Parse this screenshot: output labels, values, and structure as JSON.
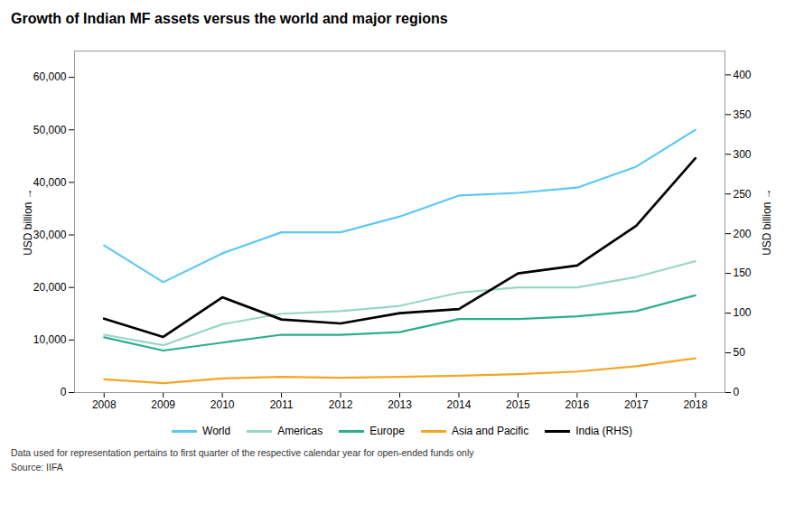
{
  "chart_data": {
    "type": "line",
    "title": "Growth of Indian MF assets versus the world and major regions",
    "x": [
      2008,
      2009,
      2010,
      2011,
      2012,
      2013,
      2014,
      2015,
      2016,
      2017,
      2018
    ],
    "xlim": [
      2007.5,
      2018.5
    ],
    "xticks": [
      2008,
      2009,
      2010,
      2011,
      2012,
      2013,
      2014,
      2015,
      2016,
      2017,
      2018
    ],
    "series": [
      {
        "name": "World",
        "color": "#5BC8F5",
        "values": [
          28000,
          21000,
          26500,
          30500,
          30500,
          33500,
          37500,
          38000,
          39000,
          43000,
          50000
        ]
      },
      {
        "name": "Americas",
        "color": "#99D6C8",
        "values": [
          11000,
          9000,
          13000,
          15000,
          15500,
          16500,
          19000,
          20000,
          20000,
          22000,
          25000
        ]
      },
      {
        "name": "Europe",
        "color": "#2BAE8E",
        "values": [
          10500,
          8000,
          9500,
          11000,
          11000,
          11500,
          14000,
          14000,
          14500,
          15500,
          18500
        ]
      },
      {
        "name": "Asia and Pacific",
        "color": "#F5A623",
        "values": [
          2500,
          1800,
          2700,
          3000,
          2800,
          3000,
          3200,
          3500,
          4000,
          5000,
          6500
        ]
      },
      {
        "name": "India (RHS)",
        "color": "#000000",
        "axis": "y2",
        "values": [
          93,
          70,
          120,
          92,
          87,
          100,
          105,
          150,
          160,
          210,
          295
        ]
      }
    ],
    "ylabel": "USD billion",
    "y2label": "USD billion",
    "ylim": [
      0,
      65000
    ],
    "yticks": [
      0,
      {
        "value": 10000,
        "label": "10,000"
      },
      {
        "value": 20000,
        "label": "20,000"
      },
      {
        "value": 30000,
        "label": "30,000"
      },
      {
        "value": 40000,
        "label": "40,000"
      },
      {
        "value": 50000,
        "label": "50,000"
      },
      {
        "value": 60000,
        "label": "60,000"
      }
    ],
    "y2lim": [
      0,
      430
    ],
    "y2ticks": [
      0,
      50,
      100,
      150,
      200,
      250,
      300,
      350,
      400
    ],
    "grid": false,
    "legend": "bottom",
    "annotations": [
      "Data used for representation pertains to first quarter of the respective calendar year for open-ended funds only",
      "Source: IIFA"
    ]
  }
}
